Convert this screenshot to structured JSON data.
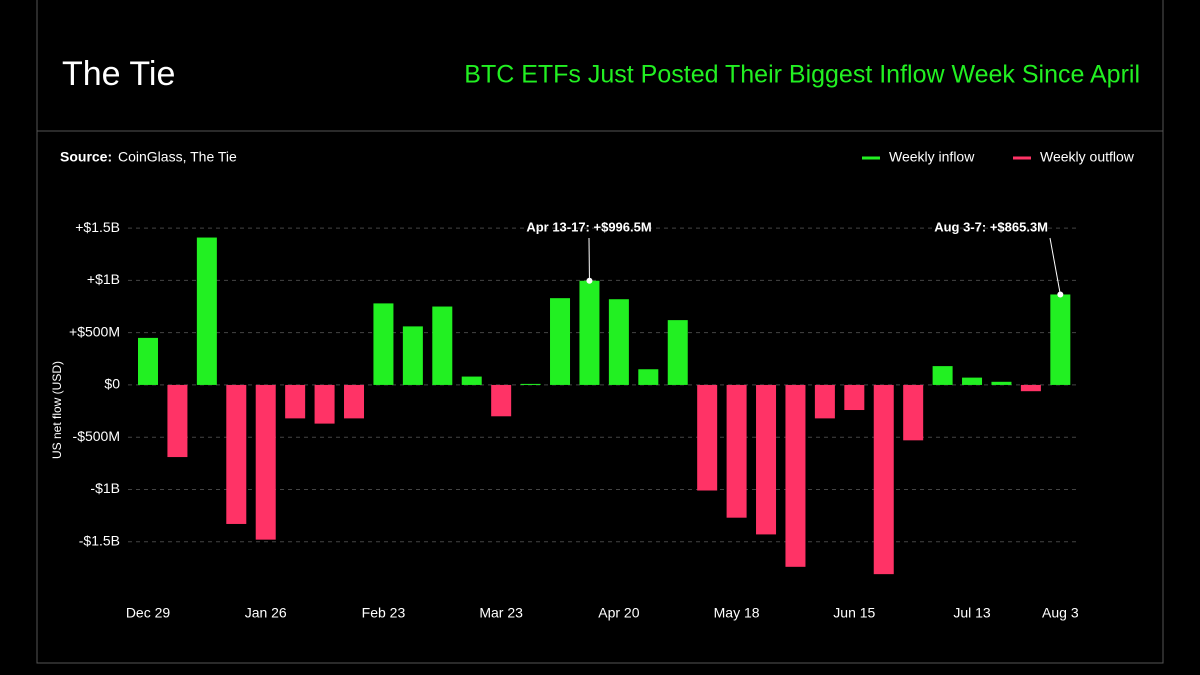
{
  "brand": "The Tie",
  "chart_data": {
    "type": "bar",
    "title": "BTC ETFs Just Posted Their Biggest Inflow Week Since April",
    "source_label": "Source:",
    "source": "CoinGlass, The Tie",
    "y_label": "US net flow (USD)",
    "categories": [
      "Dec 29",
      null,
      null,
      null,
      "Jan 26",
      null,
      null,
      null,
      "Feb 23",
      null,
      null,
      null,
      "Mar 23",
      null,
      null,
      null,
      "Apr 20",
      null,
      null,
      null,
      "May 18",
      null,
      null,
      null,
      "Jun 15",
      null,
      null,
      null,
      "Jul 13",
      null,
      null,
      "Aug 3"
    ],
    "series": [
      {
        "name": "Weekly inflow",
        "color": "#22f022",
        "values": [
          450000000,
          null,
          1410000000,
          null,
          null,
          null,
          null,
          null,
          780000000,
          560000000,
          750000000,
          80000000,
          null,
          10000000,
          830000000,
          996500000,
          820000000,
          150000000,
          620000000,
          null,
          null,
          null,
          null,
          null,
          null,
          null,
          null,
          180000000,
          70000000,
          30000000,
          null,
          865300000
        ]
      },
      {
        "name": "Weekly outflow",
        "color": "#ff3366",
        "values": [
          null,
          -690000000,
          null,
          -1330000000,
          -1480000000,
          -320000000,
          -370000000,
          -320000000,
          null,
          null,
          null,
          null,
          -300000000,
          null,
          null,
          null,
          null,
          null,
          null,
          -1010000000,
          -1270000000,
          -1430000000,
          -1740000000,
          -320000000,
          -240000000,
          -1810000000,
          -530000000,
          null,
          null,
          null,
          -60000000,
          null
        ]
      }
    ],
    "ylim": [
      -2000000000,
      1750000000
    ],
    "yticks": [
      {
        "value": 1500000000,
        "label": "+$1.5B"
      },
      {
        "value": 1000000000,
        "label": "+$1B"
      },
      {
        "value": 500000000,
        "label": "+$500M"
      },
      {
        "value": 0,
        "label": "$0"
      },
      {
        "value": -500000000,
        "label": "-$500M"
      },
      {
        "value": -1000000000,
        "label": "-$1B"
      },
      {
        "value": -1500000000,
        "label": "-$1.5B"
      }
    ],
    "grid": true,
    "legend": "top-right",
    "annotations": [
      "Apr 13-17: +$996.5M",
      "Aug 3-7: +$865.3M"
    ]
  }
}
